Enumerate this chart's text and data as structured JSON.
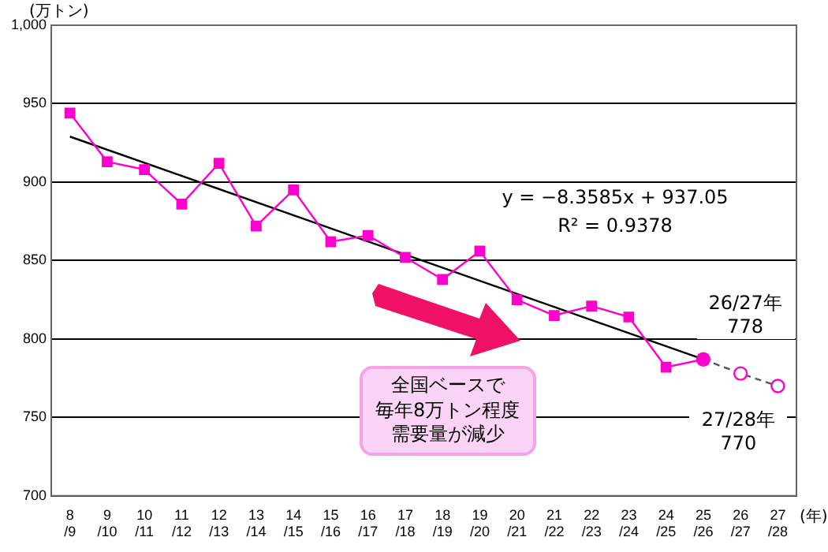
{
  "chart_data": {
    "type": "line",
    "ylabel": "(万トン)",
    "xlabel": "(年)",
    "categories": [
      "8\n/9",
      "9\n/10",
      "10\n/11",
      "11\n/12",
      "12\n/13",
      "13\n/14",
      "14\n/15",
      "15\n/16",
      "16\n/17",
      "17\n/18",
      "18\n/19",
      "19\n/20",
      "20\n/21",
      "21\n/22",
      "22\n/23",
      "23\n/24",
      "24\n/25",
      "25\n/26",
      "26\n/27",
      "27\n/28"
    ],
    "series": [
      {
        "color": "#ff00cc",
        "marker": "square",
        "values": [
          944,
          913,
          908,
          886,
          912,
          872,
          895,
          862,
          866,
          852,
          838,
          856,
          825,
          815,
          821,
          814,
          782,
          787,
          null,
          null
        ]
      },
      {
        "color": "#555555",
        "marker": "circle",
        "line_style": "dashed",
        "x": [
          "25\n/26",
          "26\n/27",
          "27\n/28"
        ],
        "values": [
          787,
          778,
          770
        ]
      },
      {
        "color": "#000000",
        "x": [
          "8\n/9",
          "25\n/26"
        ],
        "values": [
          929,
          787
        ]
      }
    ],
    "ylim": [
      700,
      1000
    ],
    "yticks": [
      700,
      750,
      800,
      850,
      900,
      950,
      {
        "value": 1000,
        "label": "1,000"
      }
    ],
    "grid": "y",
    "annotations": [
      "y = −8.3585x + 937.05",
      "R² = 0.9378",
      {
        "text": "26/27年\n778",
        "x": "26\n/27",
        "y": 778
      },
      {
        "text": "27/28年\n770",
        "x": "27\n/28",
        "y": 770
      },
      "全国ベースで",
      "毎年8万トン程度",
      "需要量が減少"
    ]
  }
}
